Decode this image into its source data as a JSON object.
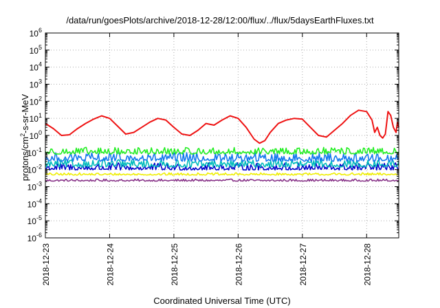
{
  "chart_data": {
    "type": "line",
    "title": "/data/run/goesPlots/archive/2018-12-28/12:00/flux/../flux/5daysEarthFluxes.txt",
    "xlabel": "Coordinated Universal Time (UTC)",
    "ylabel_parts": [
      "protons/cm",
      "2",
      "-s-sr-MeV"
    ],
    "x_axis": {
      "type": "date",
      "range": [
        "2018-12-23T00:00",
        "2018-12-28T12:00"
      ],
      "tick_labels": [
        "2018-12-23",
        "2018-12-24",
        "2018-12-25",
        "2018-12-26",
        "2018-12-27",
        "2018-12-28"
      ]
    },
    "y_axis": {
      "scale": "log",
      "range": [
        1e-06,
        1000000.0
      ],
      "tick_labels": [
        {
          "base": "10",
          "exp": "-6"
        },
        {
          "base": "10",
          "exp": "-5"
        },
        {
          "base": "10",
          "exp": "-4"
        },
        {
          "base": "10",
          "exp": "-3"
        },
        {
          "base": "10",
          "exp": "-2"
        },
        {
          "base": "10",
          "exp": "-1"
        },
        {
          "base": "10",
          "exp": "0"
        },
        {
          "base": "10",
          "exp": "1"
        },
        {
          "base": "10",
          "exp": "2"
        },
        {
          "base": "10",
          "exp": "3"
        },
        {
          "base": "10",
          "exp": "4"
        },
        {
          "base": "10",
          "exp": "5"
        },
        {
          "base": "10",
          "exp": "6"
        }
      ]
    },
    "grid": true,
    "legend": "none",
    "series": [
      {
        "color": "#ee1111",
        "values": [
          {
            "x": "2018-12-23T00:00",
            "y": 5
          },
          {
            "x": "2018-12-23T03:00",
            "y": 2.5
          },
          {
            "x": "2018-12-23T06:00",
            "y": 1.0
          },
          {
            "x": "2018-12-23T09:00",
            "y": 1.1
          },
          {
            "x": "2018-12-23T12:00",
            "y": 2.5
          },
          {
            "x": "2018-12-23T15:00",
            "y": 5
          },
          {
            "x": "2018-12-23T18:00",
            "y": 9
          },
          {
            "x": "2018-12-23T21:00",
            "y": 14
          },
          {
            "x": "2018-12-24T00:00",
            "y": 10
          },
          {
            "x": "2018-12-24T03:00",
            "y": 3.5
          },
          {
            "x": "2018-12-24T06:00",
            "y": 1.2
          },
          {
            "x": "2018-12-24T09:00",
            "y": 1.5
          },
          {
            "x": "2018-12-24T12:00",
            "y": 3
          },
          {
            "x": "2018-12-24T15:00",
            "y": 6
          },
          {
            "x": "2018-12-24T18:00",
            "y": 10
          },
          {
            "x": "2018-12-24T21:00",
            "y": 8
          },
          {
            "x": "2018-12-25T00:00",
            "y": 3
          },
          {
            "x": "2018-12-25T03:00",
            "y": 1.2
          },
          {
            "x": "2018-12-25T06:00",
            "y": 1.0
          },
          {
            "x": "2018-12-25T09:00",
            "y": 2
          },
          {
            "x": "2018-12-25T12:00",
            "y": 5
          },
          {
            "x": "2018-12-25T15:00",
            "y": 4
          },
          {
            "x": "2018-12-25T18:00",
            "y": 8
          },
          {
            "x": "2018-12-25T21:00",
            "y": 14
          },
          {
            "x": "2018-12-26T00:00",
            "y": 10
          },
          {
            "x": "2018-12-26T03:00",
            "y": 3
          },
          {
            "x": "2018-12-26T06:00",
            "y": 0.6
          },
          {
            "x": "2018-12-26T08:00",
            "y": 0.35
          },
          {
            "x": "2018-12-26T10:00",
            "y": 0.5
          },
          {
            "x": "2018-12-26T12:00",
            "y": 1.5
          },
          {
            "x": "2018-12-26T15:00",
            "y": 5
          },
          {
            "x": "2018-12-26T18:00",
            "y": 8
          },
          {
            "x": "2018-12-26T21:00",
            "y": 10
          },
          {
            "x": "2018-12-27T00:00",
            "y": 9
          },
          {
            "x": "2018-12-27T03:00",
            "y": 3
          },
          {
            "x": "2018-12-27T06:00",
            "y": 1.0
          },
          {
            "x": "2018-12-27T09:00",
            "y": 0.8
          },
          {
            "x": "2018-12-27T12:00",
            "y": 2
          },
          {
            "x": "2018-12-27T15:00",
            "y": 5
          },
          {
            "x": "2018-12-27T18:00",
            "y": 15
          },
          {
            "x": "2018-12-27T21:00",
            "y": 30
          },
          {
            "x": "2018-12-28T00:00",
            "y": 25
          },
          {
            "x": "2018-12-28T02:00",
            "y": 8
          },
          {
            "x": "2018-12-28T03:00",
            "y": 1.5
          },
          {
            "x": "2018-12-28T04:00",
            "y": 3
          },
          {
            "x": "2018-12-28T05:00",
            "y": 1.0
          },
          {
            "x": "2018-12-28T06:00",
            "y": 0.7
          },
          {
            "x": "2018-12-28T07:00",
            "y": 1.2
          },
          {
            "x": "2018-12-28T08:00",
            "y": 25
          },
          {
            "x": "2018-12-28T09:00",
            "y": 15
          },
          {
            "x": "2018-12-28T10:00",
            "y": 3
          },
          {
            "x": "2018-12-28T11:00",
            "y": 1.5
          },
          {
            "x": "2018-12-28T11:30",
            "y": 6
          },
          {
            "x": "2018-12-28T12:00",
            "y": 3
          }
        ]
      },
      {
        "color": "#22ee22",
        "band": {
          "low": 0.07,
          "high": 0.2
        }
      },
      {
        "color": "#1177ee",
        "band": {
          "low": 0.025,
          "high": 0.1
        }
      },
      {
        "color": "#00bbbb",
        "band": {
          "low": 0.012,
          "high": 0.04
        }
      },
      {
        "color": "#0000cc",
        "band": {
          "low": 0.008,
          "high": 0.025
        }
      },
      {
        "color": "#eeee00",
        "band": {
          "low": 0.0045,
          "high": 0.0065
        }
      },
      {
        "color": "#883388",
        "band": {
          "low": 0.002,
          "high": 0.0028
        }
      }
    ]
  }
}
